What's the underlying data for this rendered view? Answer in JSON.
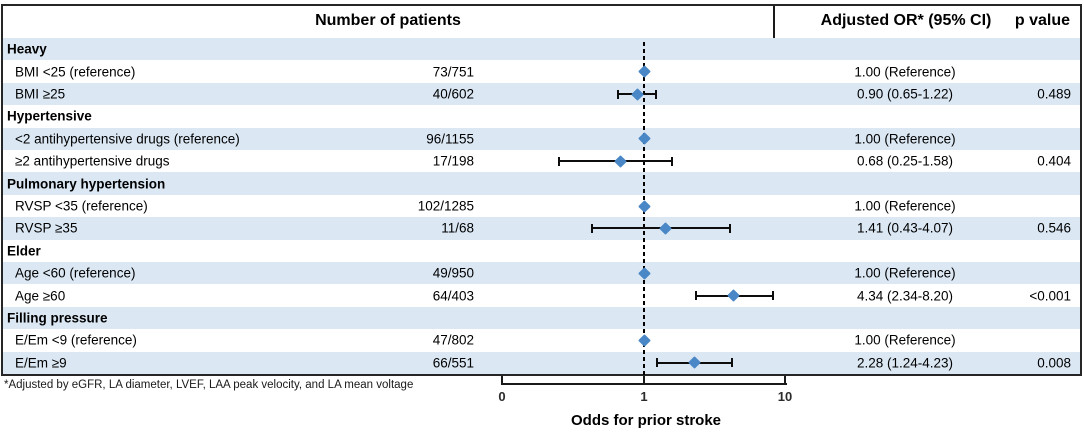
{
  "header": {
    "patients_label": "Number of patients",
    "or_label": "Adjusted OR* (95% CI)",
    "p_label": "p value"
  },
  "footnote": "*Adjusted by eGFR, LA diameter, LVEF, LAA peak velocity, and LA mean voltage",
  "colors": {
    "row_alt": "#dbe8f4",
    "marker": "#4a87c6",
    "line": "#0d0d0d"
  },
  "chart_data": {
    "type": "forest",
    "xlabel": "Odds for prior stroke",
    "x_scale": "log",
    "x_ticks": [
      "0",
      "1",
      "10"
    ],
    "reference_line_at": 1,
    "groups": [
      {
        "name": "Heavy",
        "rows": [
          {
            "label": "BMI <25 (reference)",
            "patients": "73/751",
            "or_text": "1.00 (Reference)",
            "p_value": "",
            "or": 1.0,
            "ci_low": null,
            "ci_high": null,
            "is_reference": true
          },
          {
            "label": "BMI ≥25",
            "patients": "40/602",
            "or_text": "0.90 (0.65-1.22)",
            "p_value": "0.489",
            "or": 0.9,
            "ci_low": 0.65,
            "ci_high": 1.22,
            "is_reference": false
          }
        ]
      },
      {
        "name": "Hypertensive",
        "rows": [
          {
            "label": "<2 antihypertensive drugs (reference)",
            "patients": "96/1155",
            "or_text": "1.00 (Reference)",
            "p_value": "",
            "or": 1.0,
            "ci_low": null,
            "ci_high": null,
            "is_reference": true
          },
          {
            "label": "≥2 antihypertensive drugs",
            "patients": "17/198",
            "or_text": "0.68 (0.25-1.58)",
            "p_value": "0.404",
            "or": 0.68,
            "ci_low": 0.25,
            "ci_high": 1.58,
            "is_reference": false
          }
        ]
      },
      {
        "name": "Pulmonary hypertension",
        "rows": [
          {
            "label": "RVSP <35 (reference)",
            "patients": "102/1285",
            "or_text": "1.00 (Reference)",
            "p_value": "",
            "or": 1.0,
            "ci_low": null,
            "ci_high": null,
            "is_reference": true
          },
          {
            "label": "RVSP ≥35",
            "patients": "11/68",
            "or_text": "1.41 (0.43-4.07)",
            "p_value": "0.546",
            "or": 1.41,
            "ci_low": 0.43,
            "ci_high": 4.07,
            "is_reference": false
          }
        ]
      },
      {
        "name": "Elder",
        "rows": [
          {
            "label": "Age <60 (reference)",
            "patients": "49/950",
            "or_text": "1.00 (Reference)",
            "p_value": "",
            "or": 1.0,
            "ci_low": null,
            "ci_high": null,
            "is_reference": true
          },
          {
            "label": "Age ≥60",
            "patients": "64/403",
            "or_text": "4.34 (2.34-8.20)",
            "p_value": "<0.001",
            "or": 4.34,
            "ci_low": 2.34,
            "ci_high": 8.2,
            "is_reference": false
          }
        ]
      },
      {
        "name": "Filling pressure",
        "rows": [
          {
            "label": "E/Em <9 (reference)",
            "patients": "47/802",
            "or_text": "1.00 (Reference)",
            "p_value": "",
            "or": 1.0,
            "ci_low": null,
            "ci_high": null,
            "is_reference": true
          },
          {
            "label": "E/Em ≥9",
            "patients": "66/551",
            "or_text": "2.28 (1.24-4.23)",
            "p_value": "0.008",
            "or": 2.28,
            "ci_low": 1.24,
            "ci_high": 4.23,
            "is_reference": false
          }
        ]
      }
    ]
  }
}
